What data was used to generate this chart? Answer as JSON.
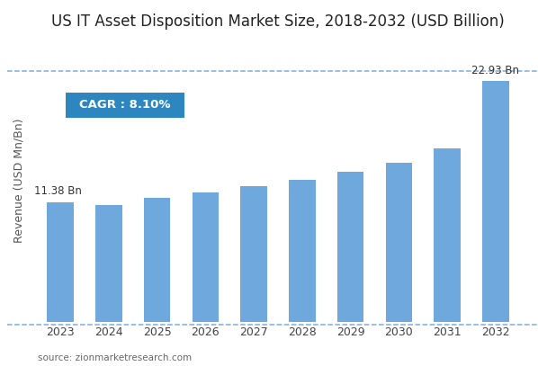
{
  "title": "US IT Asset Disposition Market Size, 2018-2032 (USD Billion)",
  "years": [
    2023,
    2024,
    2025,
    2026,
    2027,
    2028,
    2029,
    2030,
    2031,
    2032
  ],
  "values": [
    11.38,
    11.1,
    11.85,
    12.35,
    12.9,
    13.55,
    14.3,
    15.2,
    16.5,
    22.93
  ],
  "bar_color": "#6fa8dc",
  "ylabel": "Revenue (USD Mn/Bn)",
  "ylim": [
    0,
    27
  ],
  "cagr_text": "CAGR : 8.10%",
  "cagr_box_color": "#2e86c1",
  "cagr_text_color": "#ffffff",
  "first_bar_label": "11.38 Bn",
  "last_bar_label": "22.93 Bn",
  "source_text": "source: zionmarketresearch.com",
  "background_color": "#ffffff",
  "title_fontsize": 12,
  "axis_label_fontsize": 9,
  "tick_fontsize": 9,
  "dashed_line_color": "#5b9bd5",
  "bar_width": 0.55
}
